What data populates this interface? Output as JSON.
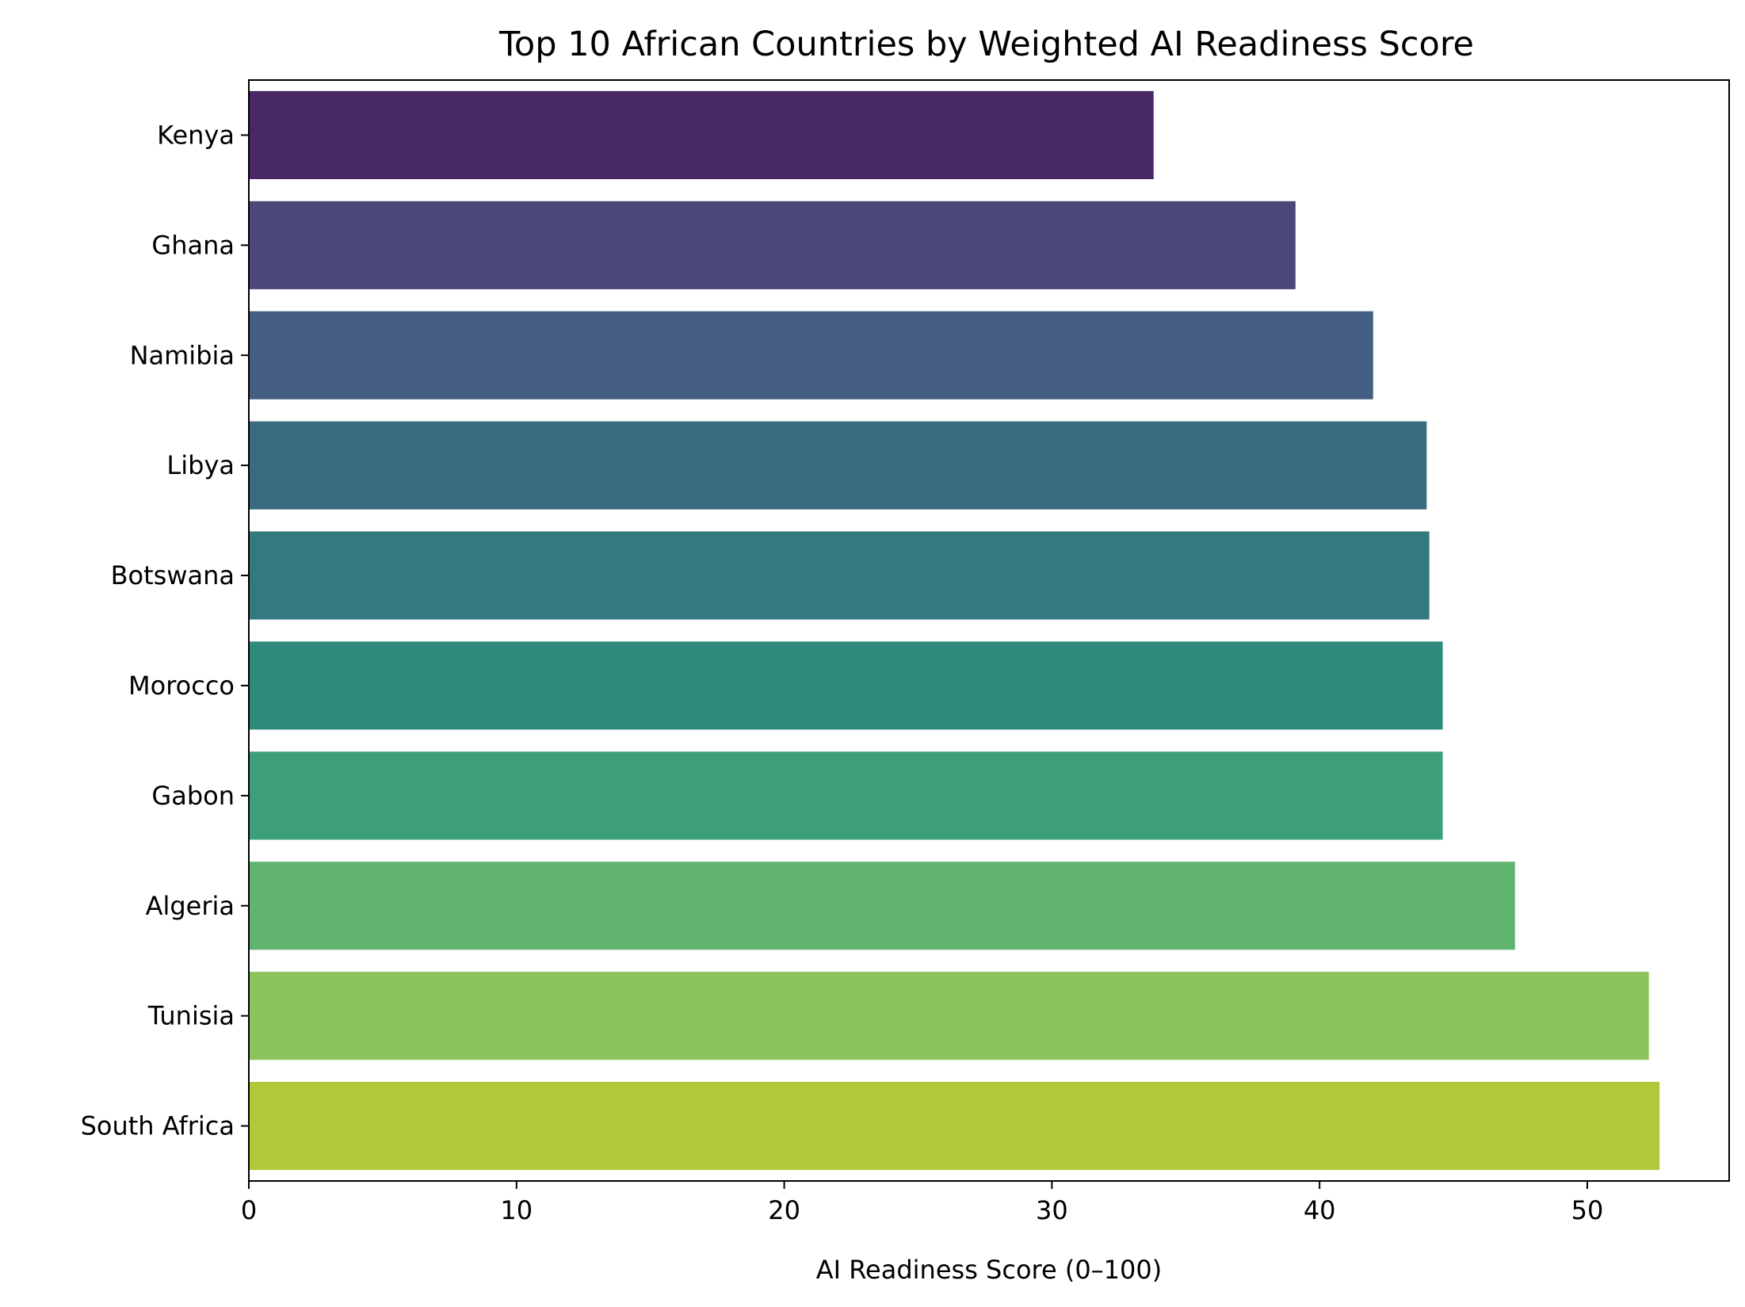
{
  "chart_data": {
    "type": "bar",
    "orientation": "horizontal",
    "title": "Top 10 African Countries by Weighted AI Readiness Score",
    "xlabel": "AI Readiness Score (0–100)",
    "ylabel": "",
    "xlim": [
      0,
      55.3
    ],
    "xticks": [
      0,
      10,
      20,
      30,
      40,
      50
    ],
    "grid": false,
    "categories": [
      "Kenya",
      "Ghana",
      "Namibia",
      "Libya",
      "Botswana",
      "Morocco",
      "Gabon",
      "Algeria",
      "Tunisia",
      "South Africa"
    ],
    "values": [
      33.8,
      39.1,
      42.0,
      44.0,
      44.1,
      44.6,
      44.6,
      47.3,
      52.3,
      52.7
    ],
    "colors": [
      "#482867",
      "#4b487a",
      "#435e82",
      "#3a6c80",
      "#337a80",
      "#2f8a7c",
      "#3c9f78",
      "#61b46f",
      "#8bc35c",
      "#b2c83a"
    ],
    "color_scale": "viridis"
  }
}
